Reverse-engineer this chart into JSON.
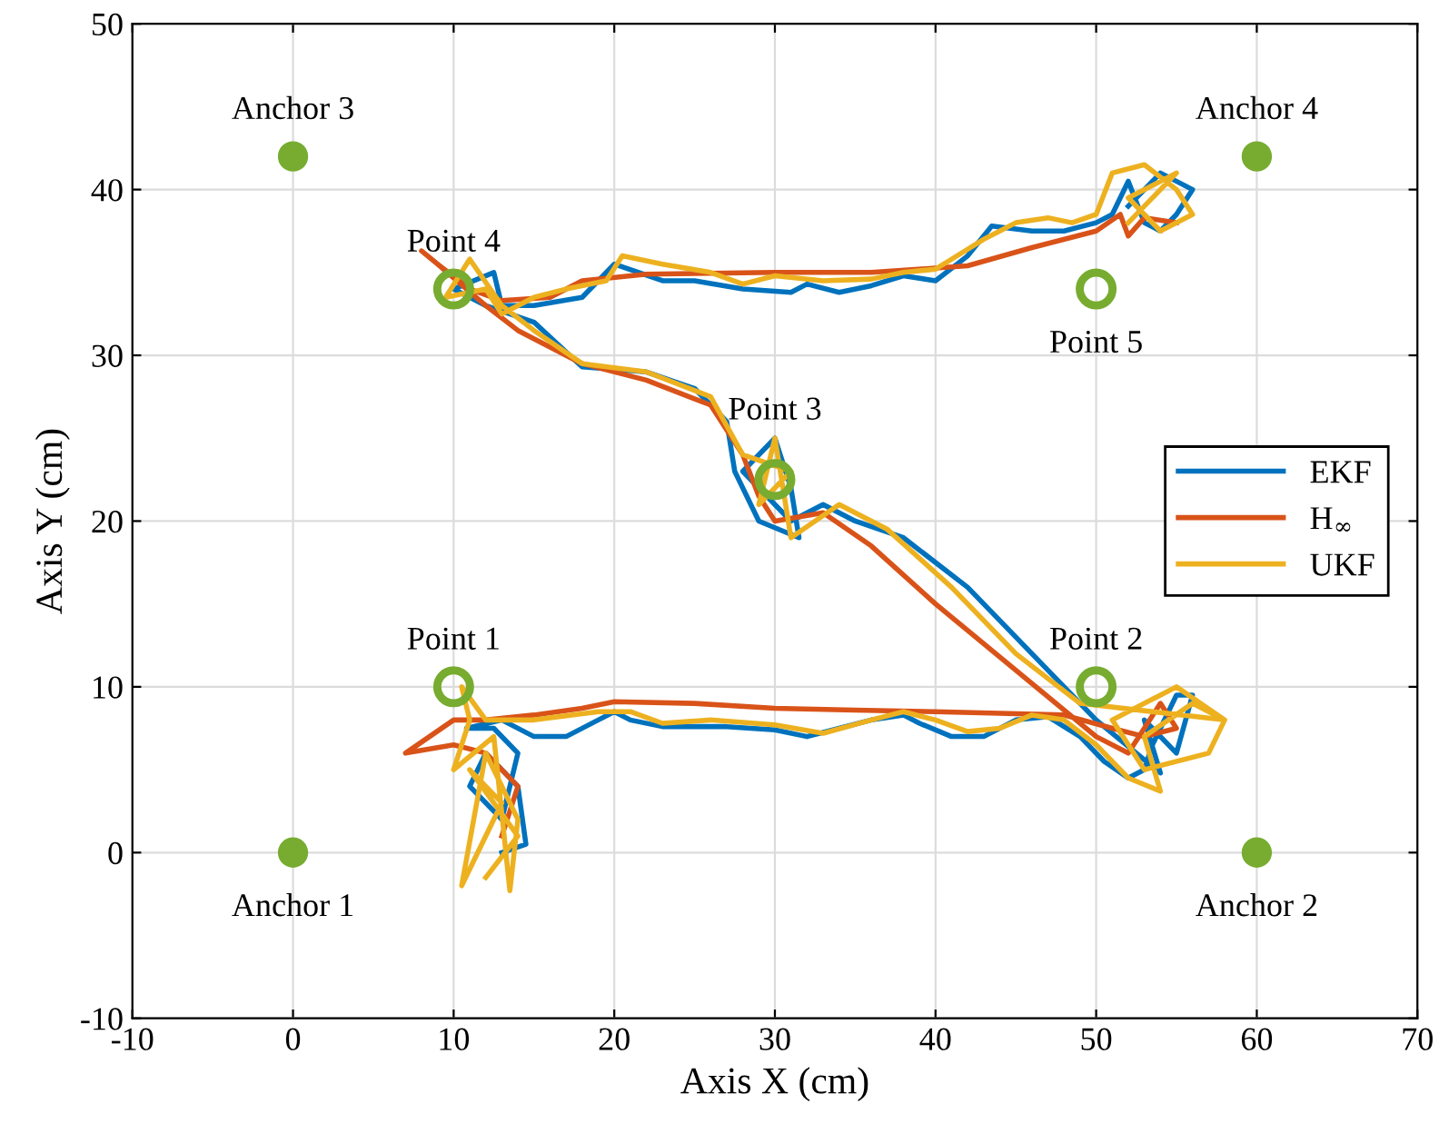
{
  "chart_data": {
    "type": "line",
    "xlabel": "Axis X (cm)",
    "ylabel": "Axis Y (cm)",
    "xlim": [
      -10,
      70
    ],
    "ylim": [
      -10,
      50
    ],
    "xticks": [
      -10,
      0,
      10,
      20,
      30,
      40,
      50,
      60,
      70
    ],
    "yticks": [
      -10,
      0,
      10,
      20,
      30,
      40,
      50
    ],
    "grid": true,
    "legend": "right",
    "line_style": "solid",
    "series": [
      {
        "name": "EKF",
        "color": "#0072bd",
        "x": [
          13,
          14.5,
          14,
          12,
          11,
          13,
          14,
          12.5,
          10.8,
          13,
          15,
          17,
          19,
          20,
          21,
          23,
          27,
          30,
          32,
          34,
          36,
          38,
          39,
          41,
          43,
          45,
          47,
          49,
          50.5,
          52,
          53,
          53.5,
          55,
          56,
          55,
          53,
          54,
          50,
          48,
          45,
          42,
          38,
          35,
          33,
          31,
          30,
          28,
          30,
          31,
          31.5,
          29,
          27.5,
          27,
          25,
          22,
          18,
          15,
          12,
          10,
          12.5,
          13,
          15,
          18,
          20,
          23,
          25,
          28,
          31,
          32,
          34,
          36,
          38,
          40,
          42,
          43.5,
          46,
          48,
          50,
          51,
          52,
          53,
          54,
          55,
          56,
          54,
          52
        ],
        "values": [
          0,
          0.5,
          4,
          6,
          4,
          2,
          6,
          7.5,
          7.5,
          8,
          7,
          7,
          8,
          8.5,
          8,
          7.6,
          7.6,
          7.4,
          7,
          7.5,
          8,
          8.3,
          7.8,
          7,
          7,
          8,
          8.2,
          7,
          5.5,
          4.5,
          5,
          6.5,
          9.5,
          9.5,
          6,
          8,
          4.8,
          8,
          10,
          13,
          16,
          19,
          20,
          21,
          20,
          21,
          23,
          25,
          22,
          19,
          20,
          23,
          26,
          28,
          29,
          29.3,
          32,
          33,
          34,
          35,
          33,
          33,
          33.5,
          35.5,
          34.5,
          34.5,
          34,
          33.8,
          34.3,
          33.8,
          34.2,
          34.8,
          34.5,
          36,
          37.8,
          37.5,
          37.5,
          38,
          38.5,
          40.5,
          38,
          37.5,
          38.5,
          40,
          41,
          39
        ]
      },
      {
        "name": "H$_{∞}$",
        "color": "#d95319",
        "x": [
          13,
          14,
          12,
          10,
          7,
          10,
          12,
          15,
          18,
          20,
          25,
          30,
          35,
          40,
          44,
          48,
          51,
          53,
          55,
          54,
          52,
          50,
          45,
          40,
          36,
          33,
          30,
          29,
          28,
          26,
          22,
          18,
          14,
          12,
          9,
          8,
          9,
          11,
          13,
          16,
          18,
          22,
          30,
          36,
          42,
          46,
          50,
          51.5,
          52,
          53,
          55
        ],
        "values": [
          1,
          4,
          6,
          6.5,
          6,
          8,
          8,
          8.3,
          8.7,
          9.1,
          9,
          8.7,
          8.6,
          8.5,
          8.4,
          8.3,
          7.5,
          7,
          7.5,
          9,
          6,
          7,
          11,
          15,
          18.5,
          20.5,
          20,
          21.5,
          24,
          27,
          28.5,
          29.5,
          31.5,
          33,
          35.5,
          36.3,
          35.5,
          34,
          33.3,
          33.5,
          34.5,
          34.9,
          35,
          35,
          35.4,
          36.5,
          37.5,
          38.5,
          37.2,
          38.3,
          38
        ]
      },
      {
        "name": "UKF",
        "color": "#edb120",
        "x": [
          12,
          14,
          11,
          13,
          10.5,
          12,
          14,
          13.5,
          12.5,
          10,
          11,
          10.5,
          12,
          15,
          19,
          21,
          23,
          26,
          30,
          33,
          36,
          38,
          40,
          42,
          44,
          46,
          48,
          50,
          52,
          54,
          53,
          56,
          58,
          57,
          53,
          51,
          55,
          58,
          49,
          45,
          41,
          37,
          34,
          31,
          30,
          29,
          31,
          28,
          26,
          22,
          18,
          15,
          13,
          11,
          9.5,
          12,
          13,
          15,
          17,
          19.5,
          20.5,
          23,
          26,
          28,
          30,
          33,
          36,
          38,
          40,
          41,
          43,
          45,
          47,
          48.5,
          50,
          51,
          53,
          55,
          56,
          54,
          52,
          55,
          52
        ],
        "values": [
          -1.5,
          1,
          5,
          3,
          -2,
          6,
          2,
          -2.3,
          7,
          5,
          8,
          10,
          8,
          8,
          8.5,
          8.5,
          7.8,
          8,
          7.7,
          7.2,
          8,
          8.5,
          8,
          7.3,
          7.5,
          8.3,
          8,
          6.5,
          4.5,
          3.7,
          7,
          9,
          8,
          6,
          5,
          8,
          10,
          8,
          9,
          12,
          16,
          19.5,
          21,
          19,
          25,
          21,
          23,
          24,
          27.5,
          29,
          29.5,
          31.5,
          33,
          35.8,
          33.5,
          34,
          32.5,
          33.5,
          34,
          34.5,
          36,
          35.5,
          35,
          34.3,
          34.8,
          34.5,
          34.6,
          35,
          35.2,
          35.8,
          37,
          38,
          38.3,
          38,
          38.5,
          41,
          41.5,
          40,
          38.5,
          37.5,
          39.5,
          41,
          38
        ]
      },
      {
        "type": "scatter",
        "marker": "circle",
        "color": "#77ac30",
        "x": [
          0,
          60,
          0,
          60
        ],
        "values": [
          0,
          0,
          42,
          42
        ]
      },
      {
        "type": "scatter",
        "marker": "circle",
        "color": "#77ac30",
        "x": [
          10,
          50,
          30,
          10,
          50
        ],
        "values": [
          10,
          10,
          22.5,
          34,
          34
        ]
      }
    ],
    "annotations": [
      {
        "text": "Anchor 1",
        "x": 0,
        "y": 0
      },
      {
        "text": "Anchor 2",
        "x": 60,
        "y": 0
      },
      {
        "text": "Anchor 3",
        "x": 0,
        "y": 42
      },
      {
        "text": "Anchor 4",
        "x": 60,
        "y": 42
      },
      {
        "text": "Point 1",
        "x": 10,
        "y": 10
      },
      {
        "text": "Point 2",
        "x": 50,
        "y": 10
      },
      {
        "text": "Point 3",
        "x": 30,
        "y": 22.5
      },
      {
        "text": "Point 4",
        "x": 10,
        "y": 34
      },
      {
        "text": "Point 5",
        "x": 50,
        "y": 34
      }
    ]
  }
}
